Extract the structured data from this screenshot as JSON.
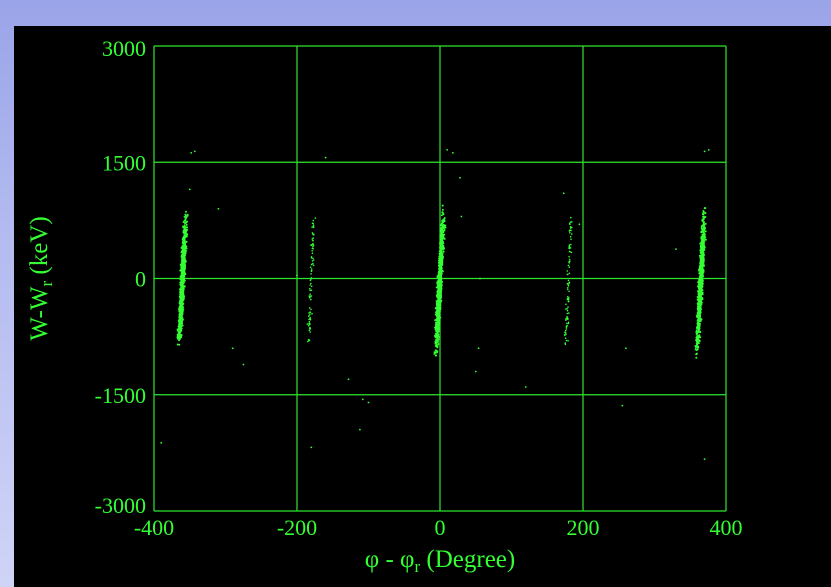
{
  "chart_data": {
    "type": "scatter",
    "title": "",
    "xlabel": {
      "main": "φ - φ",
      "sub": "r",
      "unit": " (Degree)"
    },
    "ylabel": {
      "main": "W-W",
      "sub": "r",
      "unit": " (keV)"
    },
    "xlim": [
      -400,
      400
    ],
    "ylim": [
      -3000,
      3000
    ],
    "xticks": [
      -400,
      -200,
      0,
      200,
      400
    ],
    "yticks": [
      -3000,
      -1500,
      0,
      1500,
      3000
    ],
    "xtick_labels": [
      "-400",
      "-200",
      "0",
      "200",
      "400"
    ],
    "ytick_labels": [
      "-3000",
      "-1500",
      "0",
      "1500",
      "3000"
    ],
    "grid": true,
    "legend": "none",
    "color": "#33ff33",
    "clusters": [
      {
        "center_x": -360,
        "center_y": 0,
        "x_spread": 5,
        "y_min": -950,
        "y_max": 900,
        "slope_deg_per_keV": 0.0055,
        "density": "dense"
      },
      {
        "center_x": 0,
        "center_y": 0,
        "x_spread": 5,
        "y_min": -1050,
        "y_max": 950,
        "slope_deg_per_keV": 0.0055,
        "density": "dense"
      },
      {
        "center_x": 365,
        "center_y": 0,
        "x_spread": 5,
        "y_min": -1050,
        "y_max": 950,
        "slope_deg_per_keV": 0.0055,
        "density": "dense"
      },
      {
        "center_x": -180,
        "center_y": 0,
        "x_spread": 4,
        "y_min": -850,
        "y_max": 800,
        "slope_deg_per_keV": 0.004,
        "density": "sparse"
      },
      {
        "center_x": 180,
        "center_y": 0,
        "x_spread": 4,
        "y_min": -850,
        "y_max": 800,
        "slope_deg_per_keV": 0.004,
        "density": "sparse"
      }
    ],
    "outliers": [
      {
        "x": -348,
        "y": 1620
      },
      {
        "x": -343,
        "y": 1640
      },
      {
        "x": -350,
        "y": 1150
      },
      {
        "x": -160,
        "y": 1560
      },
      {
        "x": 10,
        "y": 1660
      },
      {
        "x": 18,
        "y": 1620
      },
      {
        "x": 370,
        "y": 1640
      },
      {
        "x": 376,
        "y": 1660
      },
      {
        "x": 173,
        "y": 1100
      },
      {
        "x": 28,
        "y": 1300
      },
      {
        "x": 30,
        "y": 800
      },
      {
        "x": 54,
        "y": -900
      },
      {
        "x": 50,
        "y": -1200
      },
      {
        "x": 56,
        "y": 0
      },
      {
        "x": -290,
        "y": -900
      },
      {
        "x": -275,
        "y": -1110
      },
      {
        "x": -128,
        "y": -1300
      },
      {
        "x": -108,
        "y": -1560
      },
      {
        "x": -100,
        "y": -1600
      },
      {
        "x": -112,
        "y": -1950
      },
      {
        "x": -180,
        "y": -2180
      },
      {
        "x": -390,
        "y": -2120
      },
      {
        "x": 260,
        "y": -900
      },
      {
        "x": 255,
        "y": -1640
      },
      {
        "x": 370,
        "y": -2330
      },
      {
        "x": 195,
        "y": 700
      },
      {
        "x": -200,
        "y": 40
      },
      {
        "x": 120,
        "y": -1400
      },
      {
        "x": 330,
        "y": 380
      },
      {
        "x": -310,
        "y": 900
      }
    ]
  }
}
